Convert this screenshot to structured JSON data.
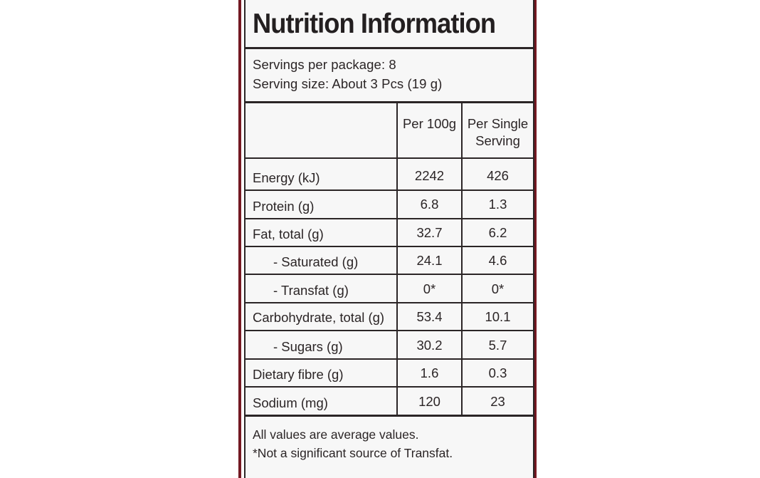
{
  "title": "Nutrition Information",
  "servings": {
    "per_package": "Servings per package: 8",
    "serving_size": "Serving size: About 3 Pcs (19 g)"
  },
  "table": {
    "headers": {
      "col1": "Per 100g",
      "col2_line1": "Per Single",
      "col2_line2": "Serving"
    },
    "rows": [
      {
        "label": "Energy (kJ)",
        "per100": "2242",
        "serving": "426"
      },
      {
        "label": "Protein (g)",
        "per100": "6.8",
        "serving": "1.3"
      },
      {
        "label": "Fat, total (g)",
        "per100": "32.7",
        "serving": "6.2"
      },
      {
        "label": "- Saturated (g)",
        "per100": "24.1",
        "serving": "4.6"
      },
      {
        "label": "- Transfat (g)",
        "per100": "0*",
        "serving": "0*"
      },
      {
        "label": "Carbohydrate, total (g)",
        "per100": "53.4",
        "serving": "10.1"
      },
      {
        "label": "- Sugars (g)",
        "per100": "30.2",
        "serving": "5.7"
      },
      {
        "label": "Dietary fibre (g)",
        "per100": "1.6",
        "serving": "0.3"
      },
      {
        "label": "Sodium (mg)",
        "per100": "120",
        "serving": "23"
      }
    ]
  },
  "footnotes": {
    "line1": "All values are average values.",
    "line2": "*Not a significant source of Transfat."
  }
}
